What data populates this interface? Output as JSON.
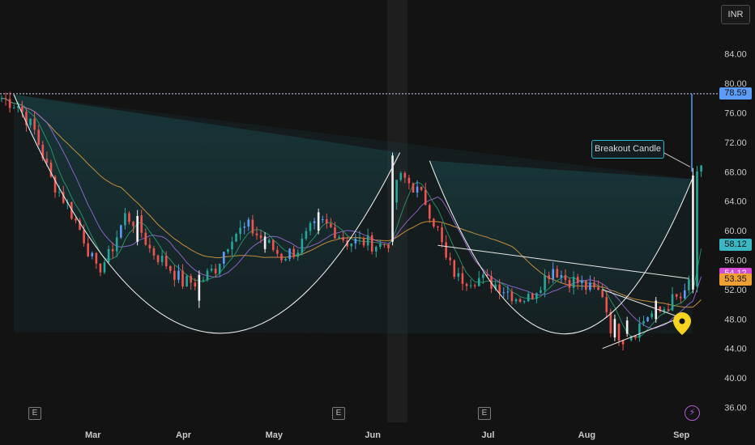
{
  "currency": "INR",
  "annotation": "Breakout Candle",
  "earnings_badge": "E",
  "event_icon": "lightning-icon",
  "colors": {
    "background": "#131313",
    "up_candle": "#26a69a",
    "down_candle": "#ef5350",
    "ma_orange": "#e0a040",
    "ma_purple": "#9c6ddc",
    "ma_green": "#2a9d6e",
    "pattern_line": "#e8e8e8",
    "resistance_line": "#cfd8ff",
    "fill": "#1b4a50",
    "last_price_tag": "#5b9cf6",
    "tag_teal": "#3ab7c2",
    "tag_magenta": "#d64bd6",
    "tag_orange": "#f0a030",
    "pin": "#f5d320"
  },
  "chart_data": {
    "type": "candlestick",
    "title": "",
    "xlabel": "",
    "ylabel": "",
    "ylim": [
      36,
      89
    ],
    "grid": false,
    "x_ticks": [
      "Mar",
      "Apr",
      "May",
      "Jun",
      "Jul",
      "Aug",
      "Sep"
    ],
    "y_ticks": [
      "36.00",
      "40.00",
      "44.00",
      "48.00",
      "52.00",
      "56.00",
      "60.00",
      "64.00",
      "68.00",
      "72.00",
      "76.00",
      "80.00",
      "84.00"
    ],
    "price_tags": [
      {
        "label": "78.59",
        "value": 78.59,
        "color": "#5b9cf6"
      },
      {
        "label": "58.12",
        "value": 58.12,
        "color": "#3ab7c2"
      },
      {
        "label": "54.12",
        "value": 54.12,
        "color": "#d64bd6"
      },
      {
        "label": "53.35",
        "value": 53.35,
        "color": "#f0a030"
      }
    ],
    "resistance_level": 78.59,
    "first_cup": {
      "left_rim": 78.5,
      "bottom": 46.2,
      "right_rim": 70.6
    },
    "second_cup": {
      "left_rim": 69.5,
      "bottom": 46.0,
      "right_rim": 67.0
    },
    "handle": {
      "high": 58.0,
      "low": 44.0
    },
    "breakout_candle": {
      "open": 52.0,
      "close": 67.5,
      "high": 68.5,
      "low": 51.5
    },
    "waypoints": [
      [
        0,
        78.0
      ],
      [
        4,
        77.0
      ],
      [
        8,
        73.5
      ],
      [
        12,
        67.0
      ],
      [
        16,
        63.5
      ],
      [
        20,
        59.0
      ],
      [
        23,
        54.5
      ],
      [
        26,
        56.5
      ],
      [
        30,
        62.0
      ],
      [
        33,
        61.0
      ],
      [
        36,
        57.5
      ],
      [
        40,
        55.5
      ],
      [
        44,
        53.0
      ],
      [
        48,
        53.0
      ],
      [
        52,
        55.0
      ],
      [
        56,
        59.5
      ],
      [
        60,
        60.5
      ],
      [
        64,
        58.5
      ],
      [
        68,
        56.5
      ],
      [
        72,
        57.5
      ],
      [
        75,
        60.0
      ],
      [
        78,
        61.0
      ],
      [
        81,
        60.0
      ],
      [
        84,
        58.5
      ],
      [
        88,
        58.5
      ],
      [
        92,
        58.0
      ],
      [
        94,
        58.5
      ],
      [
        96,
        67.0
      ],
      [
        98,
        67.0
      ],
      [
        100,
        66.0
      ],
      [
        103,
        64.0
      ],
      [
        106,
        60.0
      ],
      [
        108,
        56.0
      ],
      [
        111,
        53.5
      ],
      [
        116,
        53.5
      ],
      [
        121,
        52.5
      ],
      [
        125,
        51.0
      ],
      [
        128,
        50.8
      ],
      [
        131,
        53.0
      ],
      [
        134,
        55.0
      ],
      [
        137,
        53.5
      ],
      [
        140,
        53.0
      ],
      [
        143,
        52.0
      ],
      [
        146,
        51.5
      ],
      [
        148,
        47.0
      ],
      [
        151,
        45.5
      ],
      [
        154,
        46.5
      ],
      [
        157,
        48.5
      ],
      [
        160,
        49.0
      ],
      [
        163,
        50.5
      ],
      [
        166,
        51.0
      ],
      [
        167,
        53.0
      ],
      [
        168,
        52.5
      ],
      [
        169,
        67.0
      ],
      [
        170,
        68.0
      ]
    ],
    "white_candles": [
      {
        "index": 33,
        "open": 58.5,
        "close": 62.0,
        "high": 62.8,
        "low": 58.0
      },
      {
        "index": 48,
        "open": 50.5,
        "close": 54.0,
        "high": 54.6,
        "low": 49.5
      },
      {
        "index": 64,
        "open": 57.5,
        "close": 59.2,
        "high": 59.8,
        "low": 57.0
      },
      {
        "index": 77,
        "open": 60.0,
        "close": 62.5,
        "high": 63.0,
        "low": 59.5
      },
      {
        "index": 95,
        "open": 58.5,
        "close": 70.2,
        "high": 70.6,
        "low": 58.0
      },
      {
        "index": 149,
        "open": 45.5,
        "close": 48.0,
        "high": 48.6,
        "low": 45.0
      },
      {
        "index": 152,
        "open": 46.0,
        "close": 47.8,
        "high": 48.3,
        "low": 45.6
      },
      {
        "index": 159,
        "open": 48.0,
        "close": 50.5,
        "high": 51.0,
        "low": 47.5
      },
      {
        "index": 168,
        "open": 52.0,
        "close": 67.5,
        "high": 68.5,
        "low": 51.5
      }
    ]
  }
}
